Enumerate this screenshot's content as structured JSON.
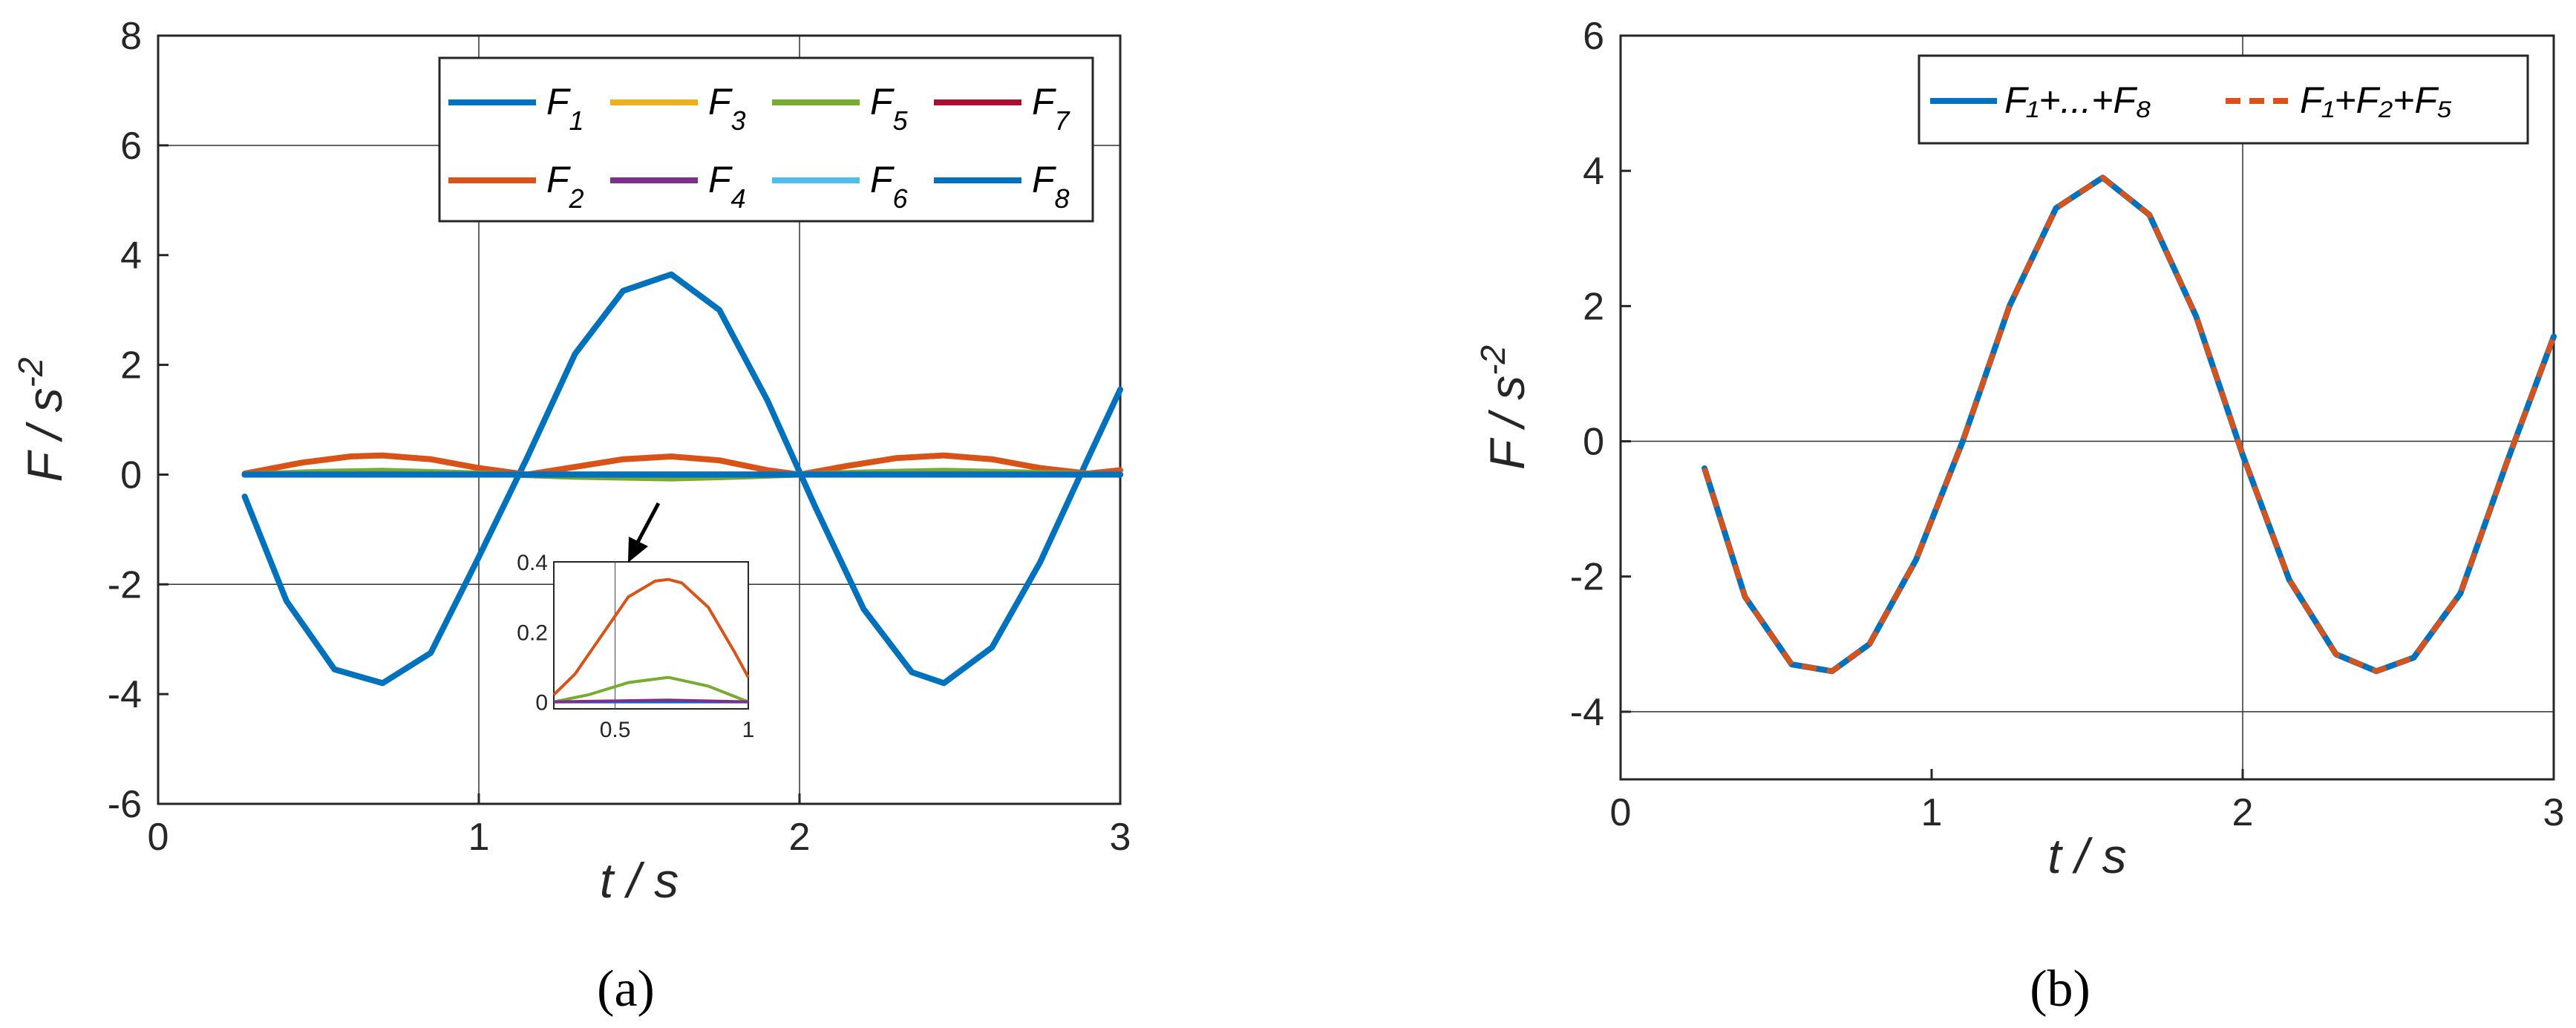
{
  "chart_data": [
    {
      "type": "line",
      "caption": "(a)",
      "xlabel": "t / s",
      "ylabel_base": "F / s",
      "ylabel_exp": "-2",
      "xlim": [
        0,
        3
      ],
      "ylim": [
        -6,
        8
      ],
      "xticks": [
        "0",
        "1",
        "2",
        "3"
      ],
      "yticks": [
        "-6",
        "-4",
        "-2",
        "0",
        "2",
        "4",
        "6",
        "8"
      ],
      "grid_lines": {
        "y": [
          -2,
          6
        ],
        "x": [
          1,
          2
        ]
      },
      "legend_position": "top-right",
      "series": [
        {
          "name": "F",
          "sub": "1",
          "color": "#0072BD",
          "x": [
            0.27,
            0.4,
            0.55,
            0.7,
            0.85,
            1.0,
            1.15,
            1.3,
            1.45,
            1.6,
            1.75,
            1.9,
            2.05,
            2.2,
            2.35,
            2.45,
            2.6,
            2.75,
            2.9,
            3.0
          ],
          "y": [
            -0.4,
            -2.3,
            -3.55,
            -3.8,
            -3.25,
            -1.5,
            0.3,
            2.2,
            3.35,
            3.65,
            3.0,
            1.35,
            -0.6,
            -2.45,
            -3.6,
            -3.8,
            -3.15,
            -1.6,
            0.3,
            1.55
          ]
        },
        {
          "name": "F",
          "sub": "2",
          "color": "#D95319",
          "x": [
            0.27,
            0.45,
            0.6,
            0.7,
            0.85,
            1.0,
            1.15,
            1.3,
            1.45,
            1.6,
            1.75,
            1.9,
            2.0,
            2.15,
            2.3,
            2.45,
            2.6,
            2.75,
            2.9,
            3.0
          ],
          "y": [
            0.02,
            0.22,
            0.33,
            0.35,
            0.28,
            0.12,
            0.0,
            0.14,
            0.28,
            0.33,
            0.26,
            0.08,
            0.0,
            0.16,
            0.3,
            0.35,
            0.28,
            0.12,
            0.02,
            0.08
          ]
        },
        {
          "name": "F",
          "sub": "3",
          "color": "#EDB120",
          "x": [
            0.27,
            3.0
          ],
          "y": [
            0.0,
            0.0
          ]
        },
        {
          "name": "F",
          "sub": "4",
          "color": "#7E2F8E",
          "x": [
            0.27,
            3.0
          ],
          "y": [
            0.0,
            0.0
          ]
        },
        {
          "name": "F",
          "sub": "5",
          "color": "#77AC30",
          "x": [
            0.27,
            0.5,
            0.7,
            0.9,
            1.1,
            1.3,
            1.6,
            1.8,
            2.0,
            2.2,
            2.45,
            2.7,
            2.95,
            3.0
          ],
          "y": [
            0.0,
            0.05,
            0.07,
            0.04,
            0.0,
            -0.04,
            -0.07,
            -0.04,
            0.0,
            0.04,
            0.07,
            0.04,
            0.0,
            0.0
          ]
        },
        {
          "name": "F",
          "sub": "6",
          "color": "#4DBEEE",
          "x": [
            0.27,
            3.0
          ],
          "y": [
            0.0,
            0.0
          ]
        },
        {
          "name": "F",
          "sub": "7",
          "color": "#A2142F",
          "x": [
            0.27,
            3.0
          ],
          "y": [
            0.0,
            0.0
          ]
        },
        {
          "name": "F",
          "sub": "8",
          "color": "#0072BD",
          "x": [
            0.27,
            3.0
          ],
          "y": [
            0.0,
            0.0
          ]
        }
      ],
      "inset": {
        "xlim": [
          0.27,
          1.0
        ],
        "ylim": [
          -0.02,
          0.4
        ],
        "xticks": [
          "0.5",
          "1"
        ],
        "yticks": [
          "0",
          "0.2",
          "0.4"
        ],
        "series": [
          {
            "color": "#D95319",
            "x": [
              0.27,
              0.35,
              0.45,
              0.55,
              0.65,
              0.7,
              0.75,
              0.85,
              0.95,
              1.0
            ],
            "y": [
              0.02,
              0.08,
              0.19,
              0.3,
              0.345,
              0.35,
              0.34,
              0.27,
              0.14,
              0.07
            ]
          },
          {
            "color": "#77AC30",
            "x": [
              0.27,
              0.4,
              0.55,
              0.7,
              0.85,
              1.0
            ],
            "y": [
              0.0,
              0.02,
              0.055,
              0.07,
              0.045,
              0.0
            ]
          },
          {
            "color": "#0072BD",
            "x": [
              0.27,
              1.0
            ],
            "y": [
              0.0,
              0.0
            ]
          },
          {
            "color": "#7E2F8E",
            "x": [
              0.27,
              0.7,
              1.0
            ],
            "y": [
              0.0,
              0.005,
              0.0
            ]
          }
        ]
      }
    },
    {
      "type": "line",
      "caption": "(b)",
      "xlabel": "t / s",
      "ylabel_base": "F / s",
      "ylabel_exp": "-2",
      "xlim": [
        0,
        3
      ],
      "ylim": [
        -5,
        6
      ],
      "xticks": [
        "0",
        "1",
        "2",
        "3"
      ],
      "yticks": [
        "-4",
        "-2",
        "0",
        "2",
        "4",
        "6"
      ],
      "grid_lines": {
        "y": [
          -4,
          0
        ],
        "x": [
          2
        ]
      },
      "legend_position": "top-right",
      "series": [
        {
          "name": "F₁+...+F₈",
          "color": "#0072BD",
          "dash": false,
          "x": [
            0.27,
            0.4,
            0.55,
            0.68,
            0.8,
            0.95,
            1.1,
            1.25,
            1.4,
            1.55,
            1.7,
            1.85,
            2.0,
            2.15,
            2.3,
            2.43,
            2.55,
            2.7,
            2.85,
            3.0
          ],
          "y": [
            -0.4,
            -2.3,
            -3.3,
            -3.4,
            -3.0,
            -1.75,
            0.0,
            2.0,
            3.45,
            3.9,
            3.35,
            1.85,
            -0.2,
            -2.05,
            -3.15,
            -3.4,
            -3.2,
            -2.25,
            -0.3,
            1.55
          ]
        },
        {
          "name": "F₁+F₂+F₅",
          "color": "#D95319",
          "dash": true,
          "x": [
            0.27,
            0.4,
            0.55,
            0.68,
            0.8,
            0.95,
            1.1,
            1.25,
            1.4,
            1.55,
            1.7,
            1.85,
            2.0,
            2.15,
            2.3,
            2.43,
            2.55,
            2.7,
            2.85,
            3.0
          ],
          "y": [
            -0.4,
            -2.3,
            -3.3,
            -3.4,
            -3.0,
            -1.75,
            0.0,
            2.0,
            3.45,
            3.9,
            3.35,
            1.85,
            -0.2,
            -2.05,
            -3.15,
            -3.4,
            -3.2,
            -2.25,
            -0.3,
            1.55
          ]
        }
      ]
    }
  ]
}
